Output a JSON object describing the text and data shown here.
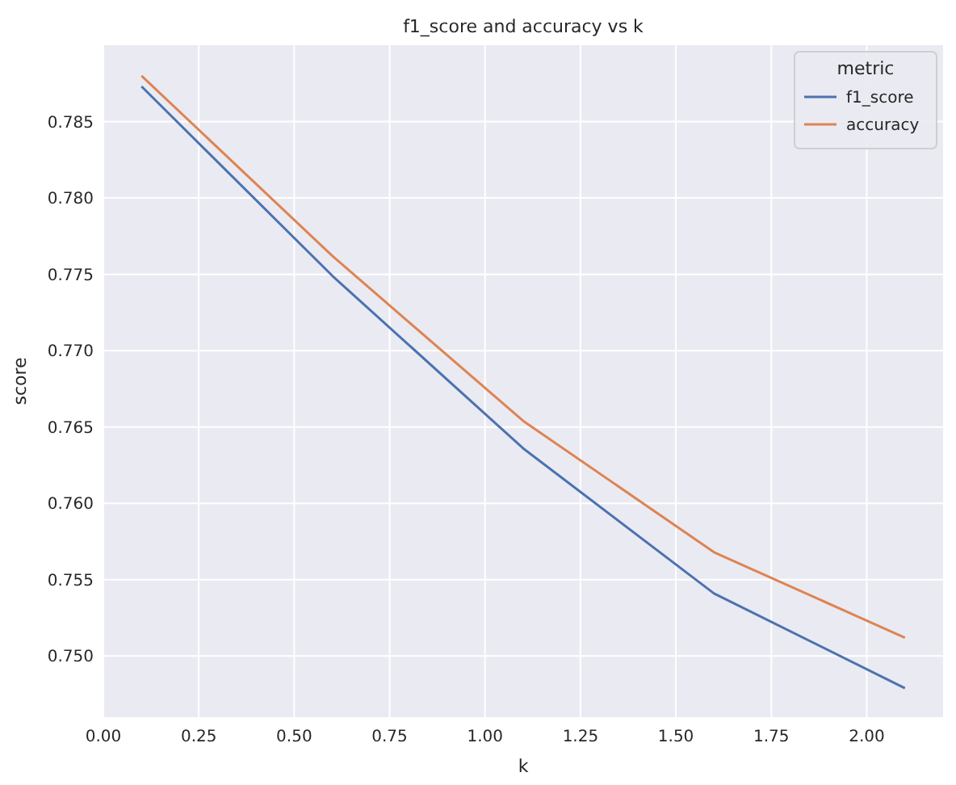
{
  "chart_data": {
    "type": "line",
    "title": "f1_score and accuracy vs k",
    "xlabel": "k",
    "ylabel": "score",
    "legend_title": "metric",
    "x": [
      0.1,
      0.6,
      1.1,
      1.6,
      2.1
    ],
    "series": [
      {
        "name": "f1_score",
        "color": "#4c72b0",
        "values": [
          0.7873,
          0.7749,
          0.7636,
          0.7541,
          0.7479
        ]
      },
      {
        "name": "accuracy",
        "color": "#dd8452",
        "values": [
          0.788,
          0.7762,
          0.7654,
          0.7568,
          0.7512
        ]
      }
    ],
    "xlim": [
      0,
      2.2
    ],
    "ylim": [
      0.746,
      0.79
    ],
    "xticks": [
      {
        "value": 0,
        "label": "0.00"
      },
      {
        "value": 0.25,
        "label": "0.25"
      },
      {
        "value": 0.5,
        "label": "0.50"
      },
      {
        "value": 0.75,
        "label": "0.75"
      },
      {
        "value": 1,
        "label": "1.00"
      },
      {
        "value": 1.25,
        "label": "1.25"
      },
      {
        "value": 1.5,
        "label": "1.50"
      },
      {
        "value": 1.75,
        "label": "1.75"
      },
      {
        "value": 2,
        "label": "2.00"
      }
    ],
    "yticks": [
      {
        "value": 0.75,
        "label": "0.750"
      },
      {
        "value": 0.755,
        "label": "0.755"
      },
      {
        "value": 0.76,
        "label": "0.760"
      },
      {
        "value": 0.765,
        "label": "0.765"
      },
      {
        "value": 0.77,
        "label": "0.770"
      },
      {
        "value": 0.775,
        "label": "0.775"
      },
      {
        "value": 0.78,
        "label": "0.780"
      },
      {
        "value": 0.785,
        "label": "0.785"
      }
    ],
    "grid": true,
    "legend": "top right",
    "marker": "none",
    "line_style": "solid"
  }
}
